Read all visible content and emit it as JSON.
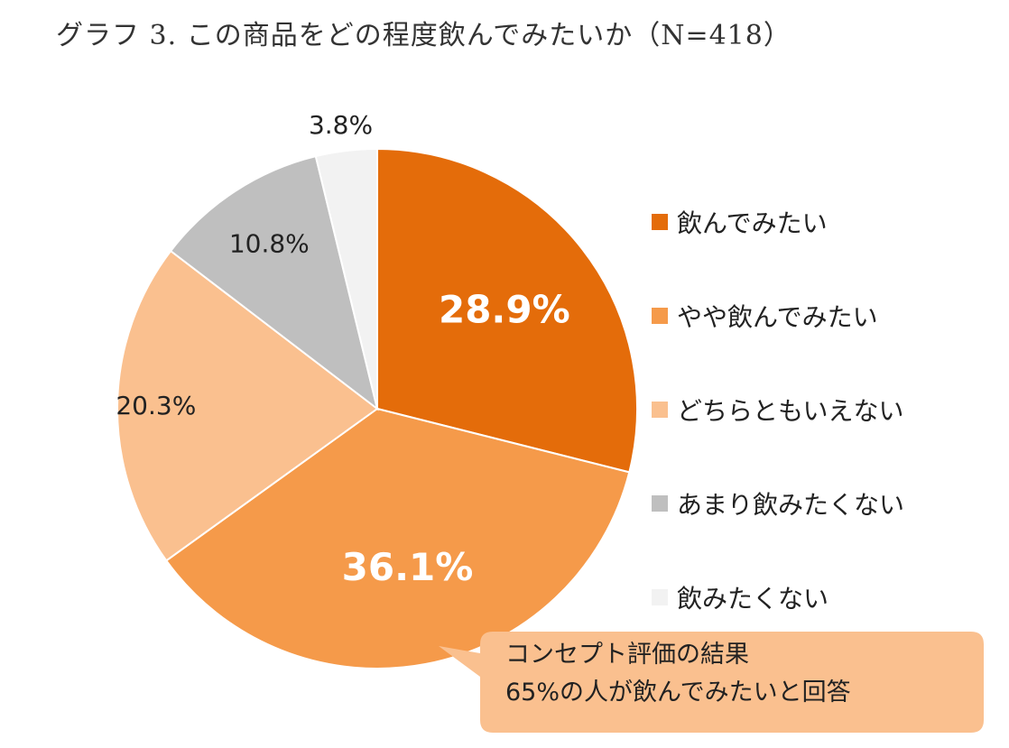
{
  "chart_data": {
    "type": "pie",
    "title": "グラフ 3. この商品をどの程度飲んでみたいか（N=418）",
    "categories": [
      "飲んでみたい",
      "やや飲んでみたい",
      "どちらともいえない",
      "あまり飲みたくない",
      "飲みたくない"
    ],
    "values": [
      28.9,
      36.1,
      20.3,
      10.8,
      3.8
    ],
    "labels": [
      "28.9%",
      "36.1%",
      "20.3%",
      "10.8%",
      "3.8%"
    ],
    "colors": [
      "#e46c0a",
      "#f59a4a",
      "#fac08f",
      "#bfbfbf",
      "#f2f2f2"
    ],
    "label_colors": [
      "#ffffff",
      "#ffffff",
      "#222222",
      "#222222",
      "#222222"
    ],
    "legend_position": "right",
    "start_angle": "12 o'clock, clockwise"
  },
  "callout": {
    "line1": "コンセプト評価の結果",
    "line2": "65%の人が飲んでみたいと回答",
    "color": "#fac08f"
  }
}
